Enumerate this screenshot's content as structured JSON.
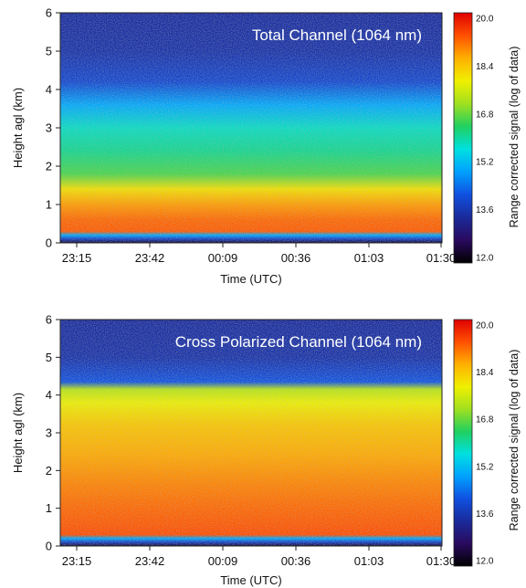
{
  "chart_data": [
    {
      "type": "heatmap",
      "title": "Total Channel (1064 nm)",
      "xlabel": "Time (UTC)",
      "ylabel": "Height agl (km)",
      "x_ticks": [
        "23:15",
        "23:42",
        "00:09",
        "00:36",
        "01:03",
        "01:30"
      ],
      "ylim": [
        0,
        6
      ],
      "y_ticks": [
        0,
        1,
        2,
        3,
        4,
        5,
        6
      ],
      "colorbar": {
        "label": "Range corrected signal (log of data)",
        "ticks": [
          "20.0",
          "18.4",
          "16.8",
          "15.2",
          "13.6",
          "12.0"
        ],
        "range": [
          12.0,
          20.0
        ],
        "colormap": [
          "#000000",
          "#2a0a5e",
          "#1a2a9a",
          "#1050e0",
          "#00a0ff",
          "#00e0e0",
          "#20d060",
          "#a0e020",
          "#f0f000",
          "#ffb000",
          "#ff5000",
          "#e00000"
        ]
      },
      "profile": [
        {
          "height": 0.0,
          "value": 12.4
        },
        {
          "height": 0.1,
          "value": 13.9
        },
        {
          "height": 0.2,
          "value": 15.0
        },
        {
          "height": 0.3,
          "value": 19.2
        },
        {
          "height": 0.6,
          "value": 19.1
        },
        {
          "height": 1.0,
          "value": 18.7
        },
        {
          "height": 1.4,
          "value": 18.0
        },
        {
          "height": 1.8,
          "value": 16.6
        },
        {
          "height": 2.4,
          "value": 16.1
        },
        {
          "height": 3.0,
          "value": 15.8
        },
        {
          "height": 3.6,
          "value": 15.0
        },
        {
          "height": 4.2,
          "value": 14.0
        },
        {
          "height": 5.0,
          "value": 13.6
        },
        {
          "height": 6.0,
          "value": 13.5
        }
      ]
    },
    {
      "type": "heatmap",
      "title": "Cross Polarized Channel (1064 nm)",
      "xlabel": "Time (UTC)",
      "ylabel": "Height agl (km)",
      "x_ticks": [
        "23:15",
        "23:42",
        "00:09",
        "00:36",
        "01:03",
        "01:30"
      ],
      "ylim": [
        0,
        6
      ],
      "y_ticks": [
        0,
        1,
        2,
        3,
        4,
        5,
        6
      ],
      "colorbar": {
        "label": "Range corrected signal (log of data)",
        "ticks": [
          "20.0",
          "18.4",
          "16.8",
          "15.2",
          "13.6",
          "12.0"
        ],
        "range": [
          12.0,
          20.0
        ],
        "colormap": [
          "#000000",
          "#2a0a5e",
          "#1a2a9a",
          "#1050e0",
          "#00a0ff",
          "#00e0e0",
          "#20d060",
          "#a0e020",
          "#f0f000",
          "#ffb000",
          "#ff5000",
          "#e00000"
        ]
      },
      "profile": [
        {
          "height": 0.0,
          "value": 12.4
        },
        {
          "height": 0.1,
          "value": 13.9
        },
        {
          "height": 0.2,
          "value": 15.0
        },
        {
          "height": 0.3,
          "value": 19.3
        },
        {
          "height": 1.0,
          "value": 19.1
        },
        {
          "height": 1.6,
          "value": 18.9
        },
        {
          "height": 2.4,
          "value": 18.6
        },
        {
          "height": 3.2,
          "value": 18.3
        },
        {
          "height": 3.8,
          "value": 17.8
        },
        {
          "height": 4.15,
          "value": 17.3
        },
        {
          "height": 4.35,
          "value": 14.2
        },
        {
          "height": 5.0,
          "value": 13.6
        },
        {
          "height": 6.0,
          "value": 13.5
        }
      ]
    }
  ]
}
